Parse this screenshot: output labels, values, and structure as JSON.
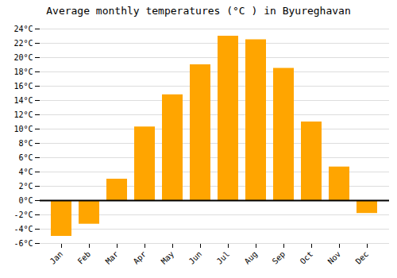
{
  "chart_data": {
    "type": "bar",
    "title": "Average monthly temperatures (°C ) in Byureghavan",
    "categories": [
      "Jan",
      "Feb",
      "Mar",
      "Apr",
      "May",
      "Jun",
      "Jul",
      "Aug",
      "Sep",
      "Oct",
      "Nov",
      "Dec"
    ],
    "values": [
      -5.0,
      -3.3,
      3.0,
      10.3,
      14.8,
      19.0,
      23.0,
      22.5,
      18.5,
      11.0,
      4.7,
      -1.8
    ],
    "color": "#FFA500",
    "ylim": [
      -6,
      24
    ],
    "yticks": [
      {
        "value": -6,
        "label": "-6°C"
      },
      {
        "value": -4,
        "label": "-4°C"
      },
      {
        "value": -2,
        "label": "-2°C"
      },
      {
        "value": 0,
        "label": "0°C"
      },
      {
        "value": 2,
        "label": "2°C"
      },
      {
        "value": 4,
        "label": "4°C"
      },
      {
        "value": 6,
        "label": "6°C"
      },
      {
        "value": 8,
        "label": "8°C"
      },
      {
        "value": 10,
        "label": "10°C"
      },
      {
        "value": 12,
        "label": "12°C"
      },
      {
        "value": 14,
        "label": "14°C"
      },
      {
        "value": 16,
        "label": "16°C"
      },
      {
        "value": 18,
        "label": "18°C"
      },
      {
        "value": 20,
        "label": "20°C"
      },
      {
        "value": 22,
        "label": "22°C"
      },
      {
        "value": 24,
        "label": "24°C"
      }
    ],
    "grid": true
  }
}
